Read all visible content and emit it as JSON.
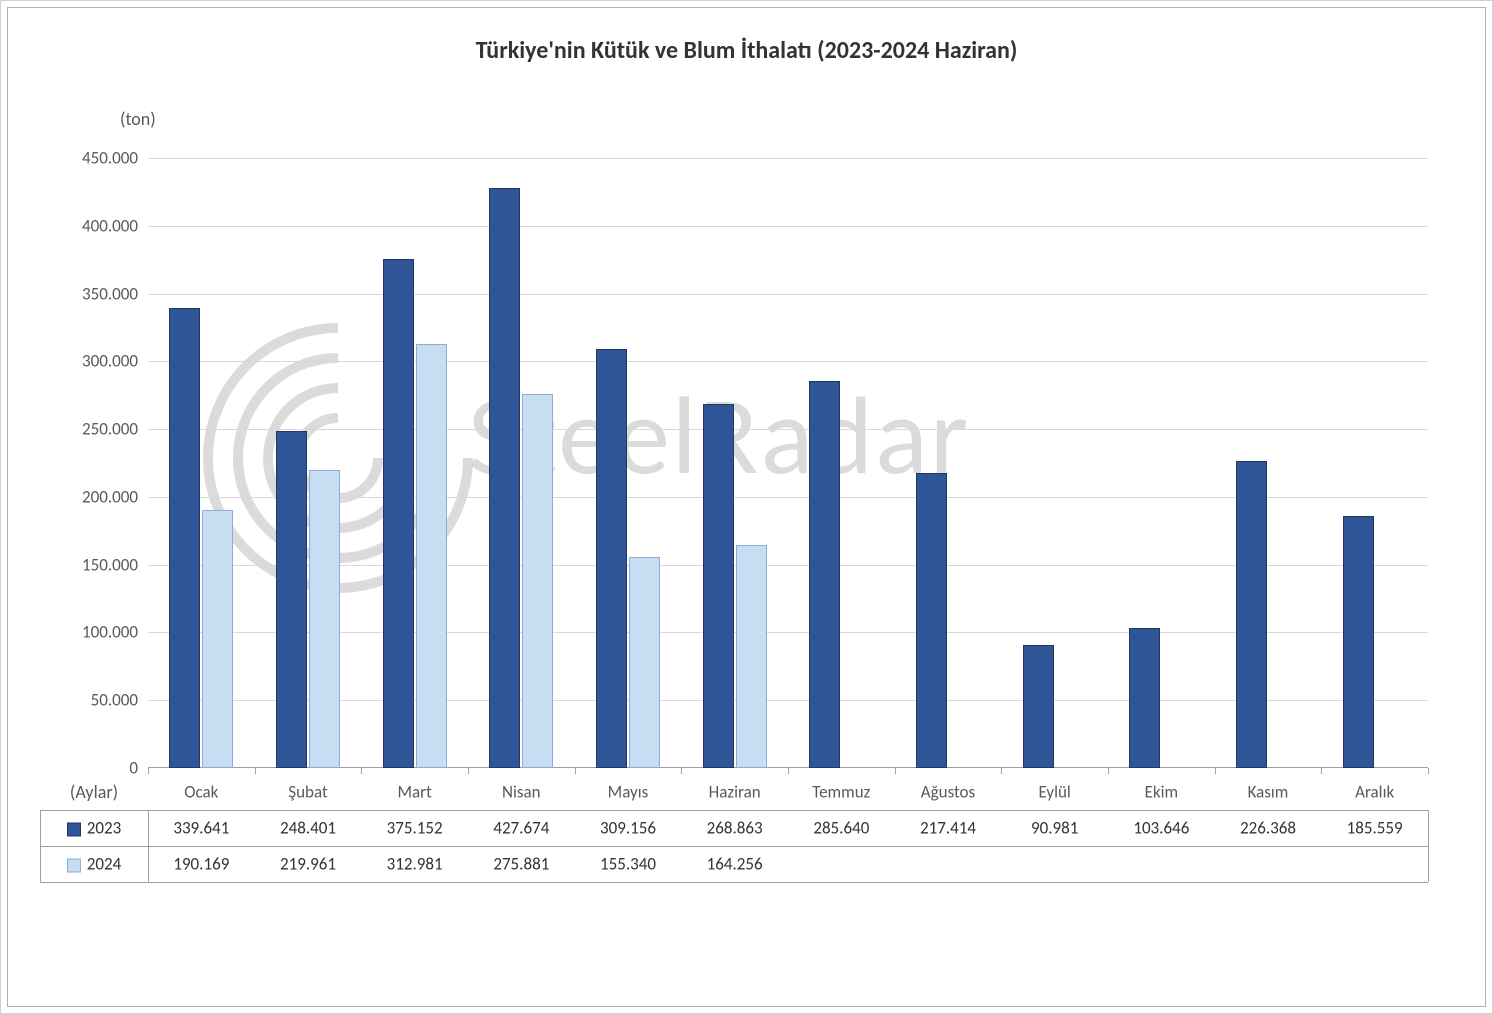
{
  "chart": {
    "type": "bar",
    "title": "Türkiye'nin Kütük ve Blum İthalatı (2023-2024 Haziran)",
    "title_fontsize": 24,
    "title_color": "#333333",
    "unit_label": "(ton)",
    "unit_label_fontsize": 18,
    "x_axis_header": "(Aylar)",
    "background_color": "#ffffff",
    "outer_border_color": "#d0d0d0",
    "inner_border_color": "#b0b0b0",
    "grid_color": "#d9d9d9",
    "axis_color": "#a0a0a0",
    "label_color": "#595959",
    "ylim": [
      0,
      450000
    ],
    "ytick_step": 50000,
    "ytick_labels": [
      "0",
      "50.000",
      "100.000",
      "150.000",
      "200.000",
      "250.000",
      "300.000",
      "350.000",
      "400.000",
      "450.000"
    ],
    "categories": [
      "Ocak",
      "Şubat",
      "Mart",
      "Nisan",
      "Mayıs",
      "Haziran",
      "Temmuz",
      "Ağustos",
      "Eylül",
      "Ekim",
      "Kasım",
      "Aralık"
    ],
    "series": [
      {
        "name": "2023",
        "fill": "#2f5597",
        "border": "#1f3864",
        "values": [
          339641,
          248401,
          375152,
          427674,
          309156,
          268863,
          285640,
          217414,
          90981,
          103646,
          226368,
          185559
        ],
        "display": [
          "339.641",
          "248.401",
          "375.152",
          "427.674",
          "309.156",
          "268.863",
          "285.640",
          "217.414",
          "90.981",
          "103.646",
          "226.368",
          "185.559"
        ]
      },
      {
        "name": "2024",
        "fill": "#c7ddf2",
        "border": "#8faadc",
        "values": [
          190169,
          219961,
          312981,
          275881,
          155340,
          164256,
          null,
          null,
          null,
          null,
          null,
          null
        ],
        "display": [
          "190.169",
          "219.961",
          "312.981",
          "275.881",
          "155.340",
          "164.256",
          "",
          "",
          "",
          "",
          "",
          ""
        ]
      }
    ],
    "bar_group_width_ratio": 0.6,
    "bar_gap_within_group_ratio": 0.02,
    "watermark_text": "SteelRadar",
    "watermark_color": "#bfbfbf",
    "label_fontsize": 17
  }
}
